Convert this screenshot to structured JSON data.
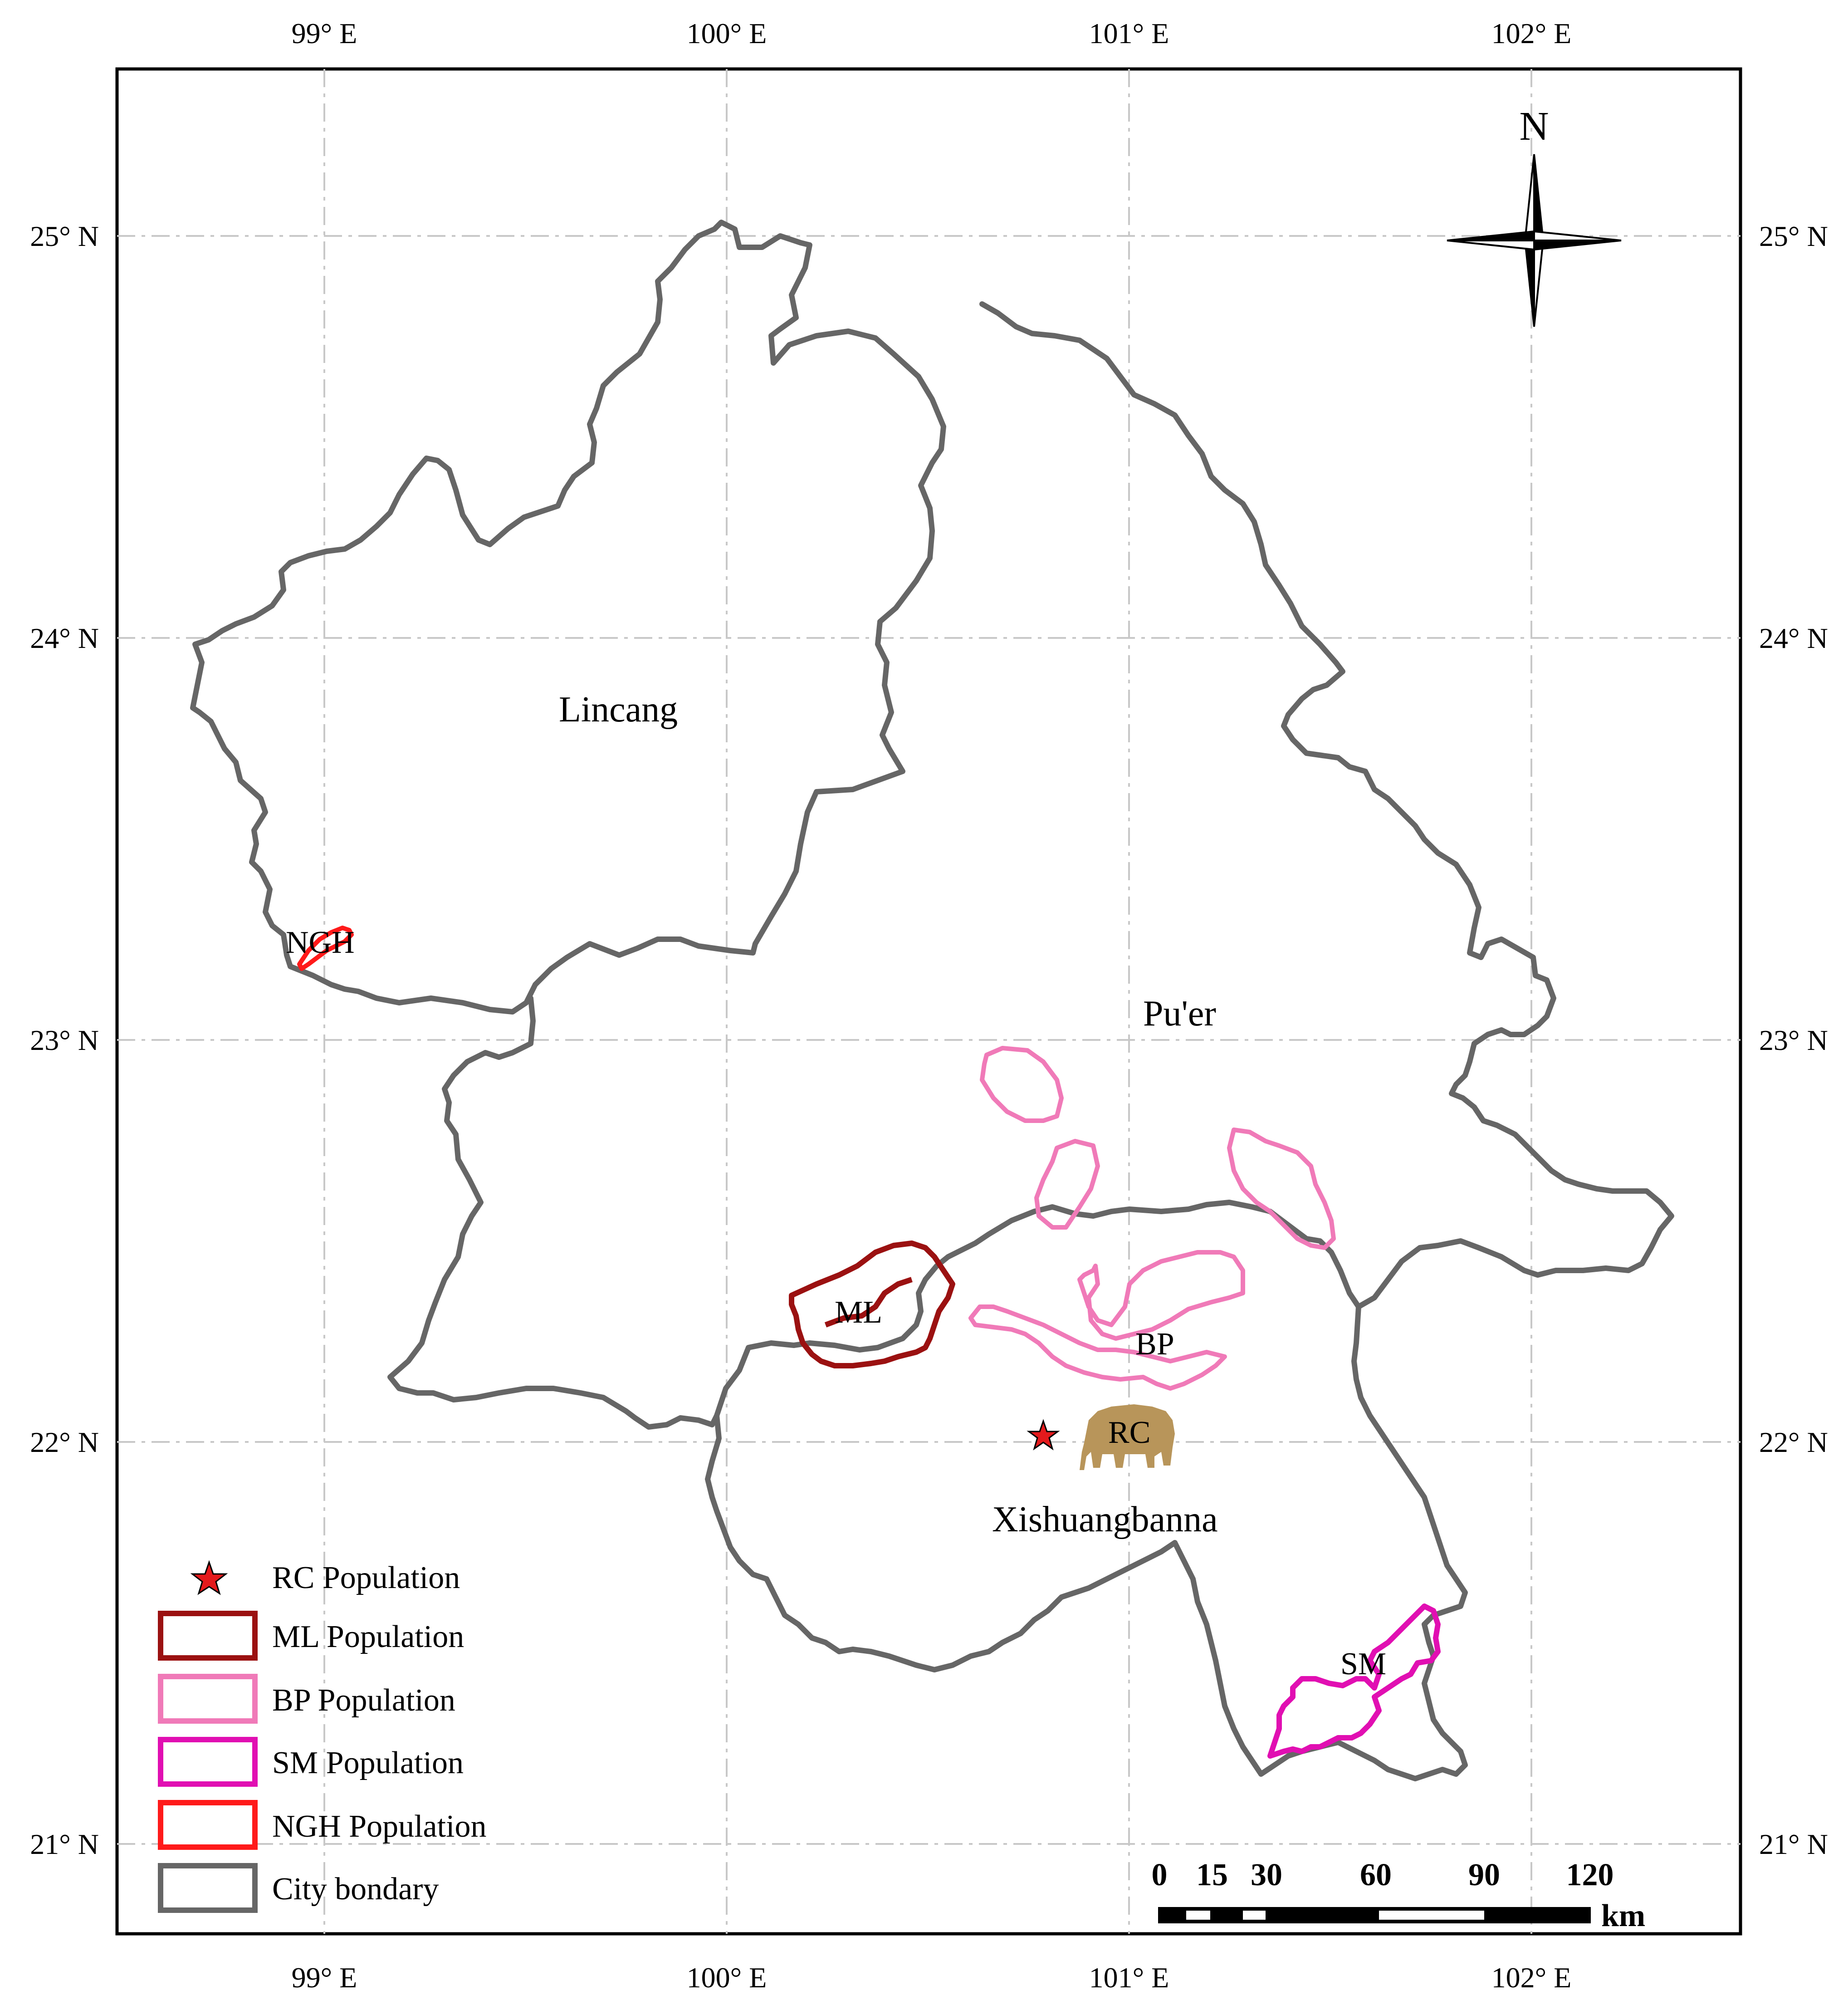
{
  "axes": {
    "longitude_ticks": [
      "99° E",
      "100° E",
      "101° E",
      "102° E"
    ],
    "latitude_ticks": [
      "25° N",
      "24° N",
      "23° N",
      "22° N",
      "21° N"
    ]
  },
  "north_arrow": {
    "label": "N"
  },
  "regions": {
    "lincang": "Lincang",
    "puer": "Pu'er",
    "xishuangbanna": "Xishuangbanna"
  },
  "populations": {
    "ngh": "NGH",
    "ml": "ML",
    "bp": "BP",
    "rc": "RC",
    "sm": "SM"
  },
  "legend": {
    "items": [
      {
        "label": "RC Population",
        "symbol": "star",
        "color": "#e41a1c"
      },
      {
        "label": "ML Population",
        "symbol": "box",
        "color": "#9b1111"
      },
      {
        "label": "BP Population",
        "symbol": "box",
        "color": "#f07ab8"
      },
      {
        "label": "SM Population",
        "symbol": "box",
        "color": "#e10fb2"
      },
      {
        "label": "NGH Population",
        "symbol": "box",
        "color": "#ff1a1a"
      },
      {
        "label": "City bondary",
        "symbol": "box",
        "color": "#666666"
      }
    ]
  },
  "scale_bar": {
    "ticks": [
      "0",
      "15",
      "30",
      "60",
      "90",
      "120"
    ],
    "unit": "km"
  },
  "colors": {
    "boundary": "#666666",
    "graticule": "#c8c8c8",
    "frame": "#000000",
    "elephant": "#b8955a"
  }
}
